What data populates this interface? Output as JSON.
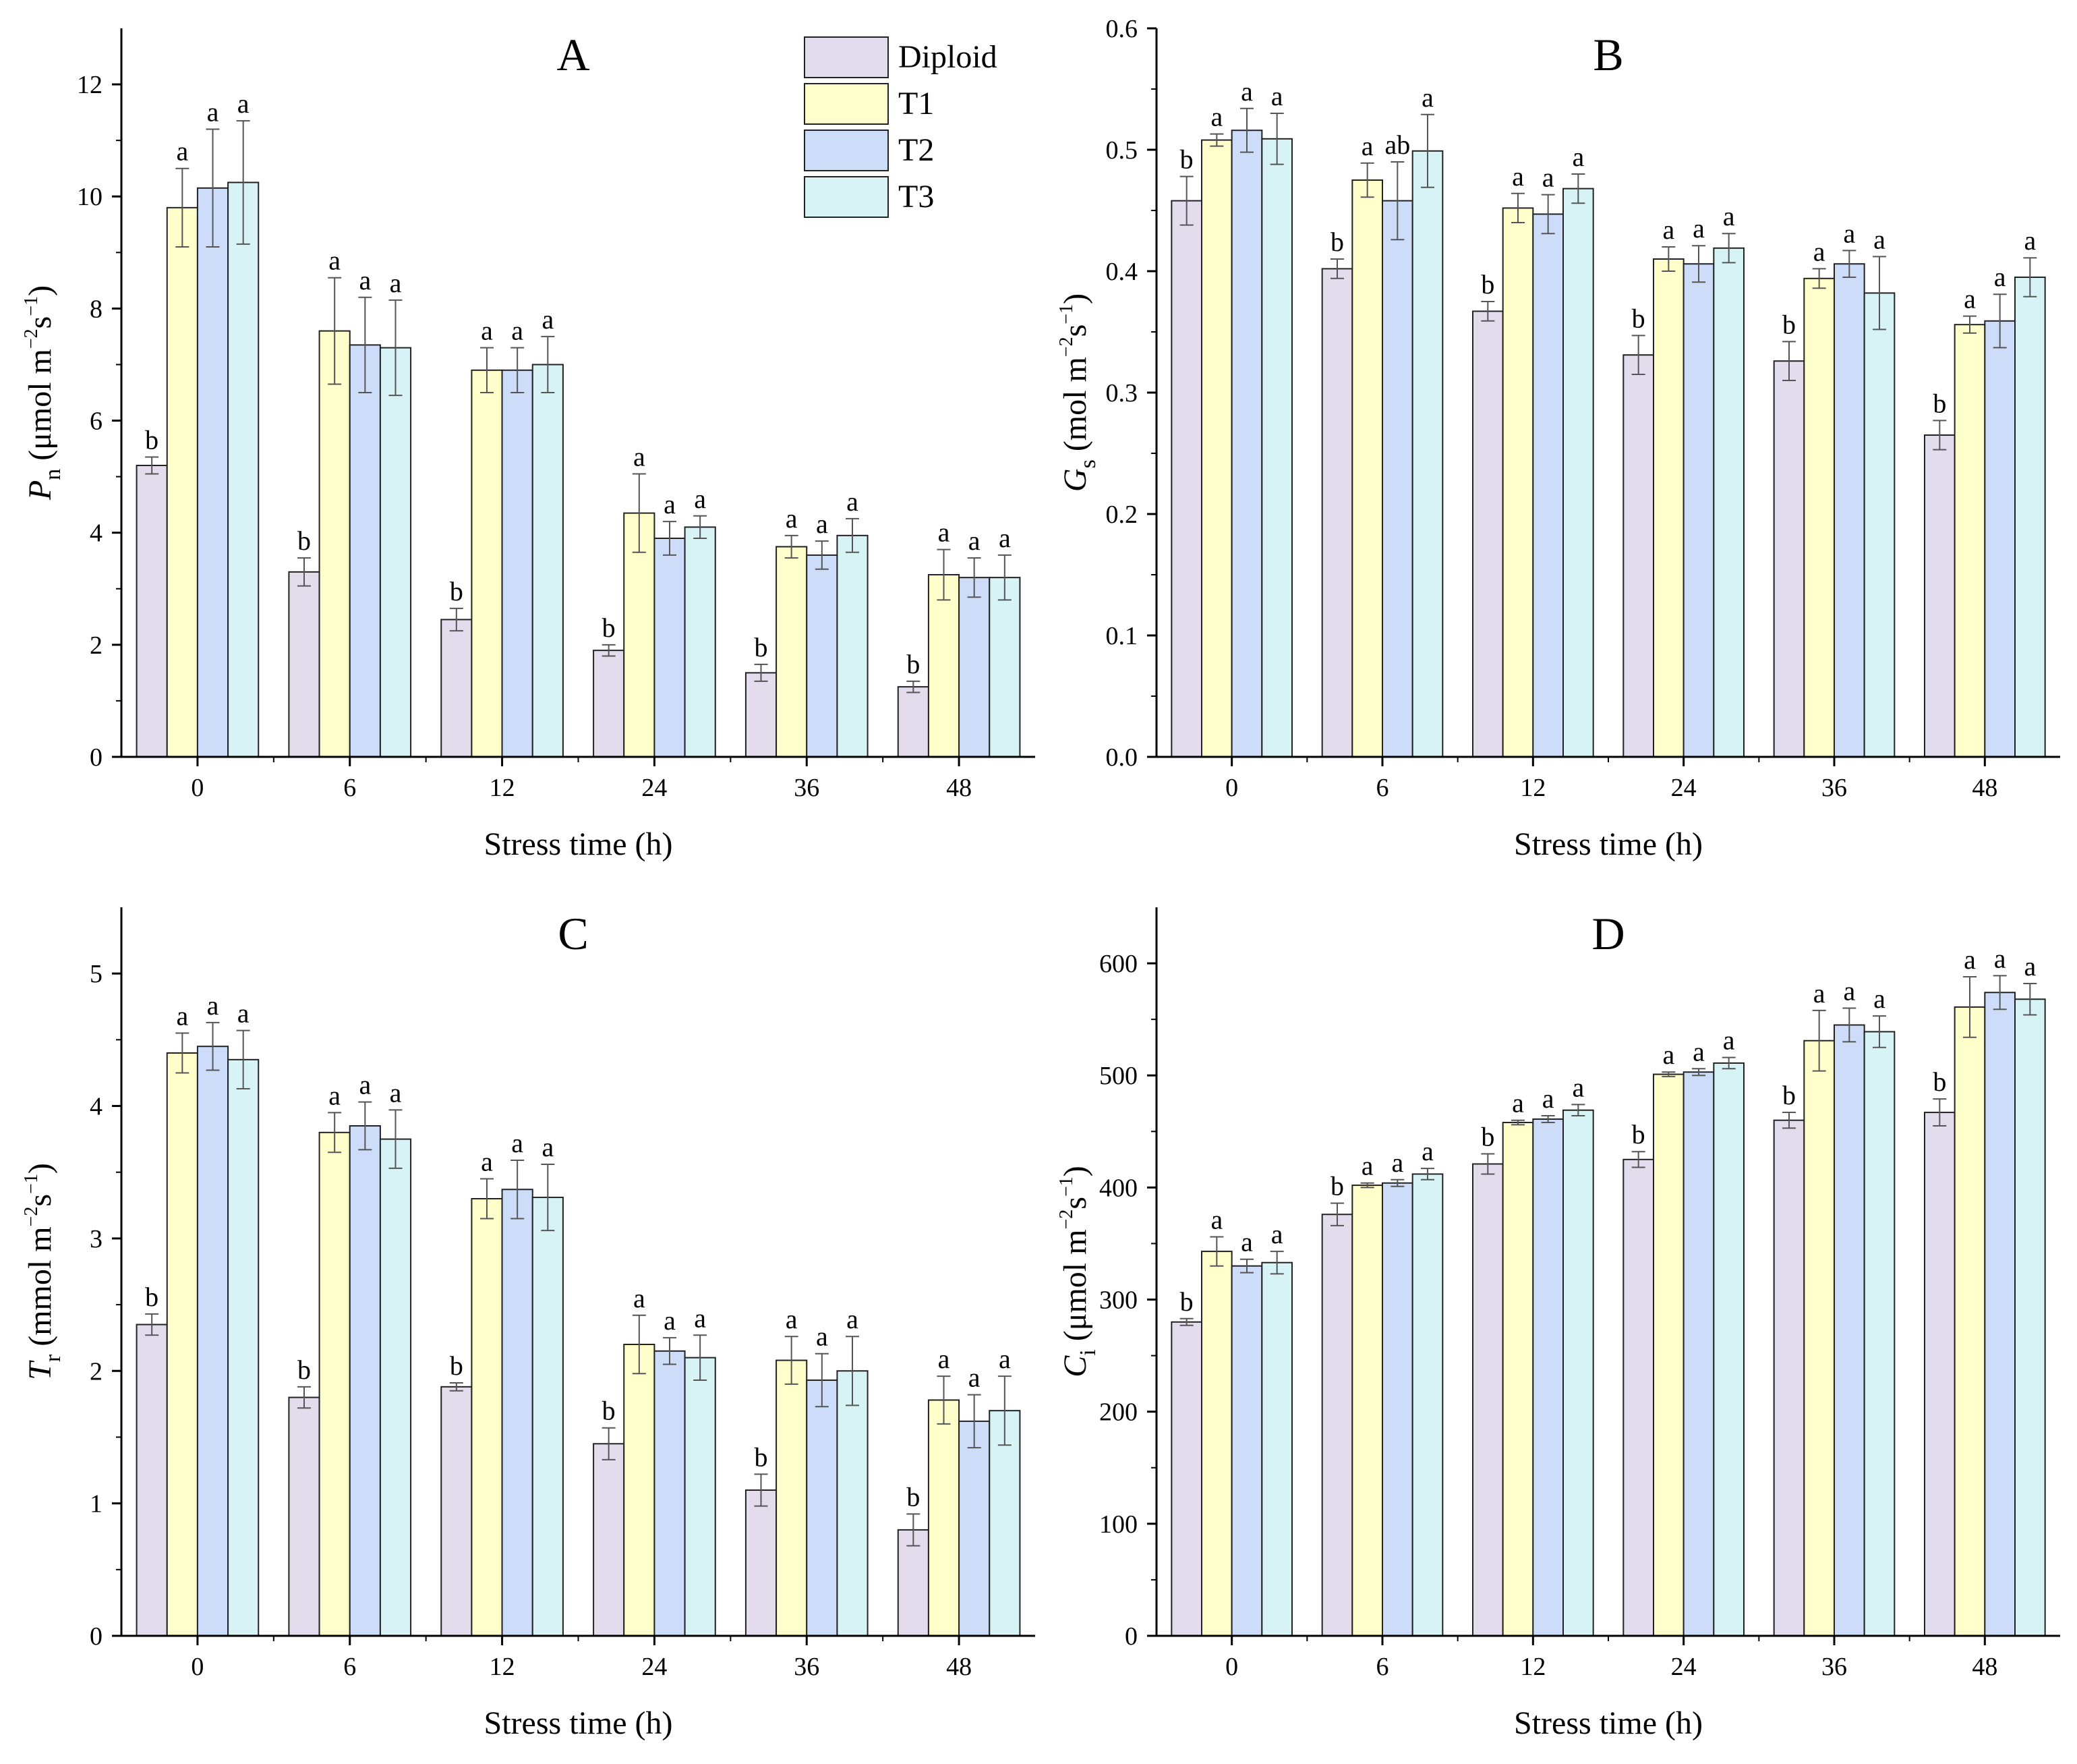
{
  "colors": {
    "Diploid": "#e3dcec",
    "T1": "#ffffcc",
    "T2": "#cddcf9",
    "T3": "#d7f3f5",
    "axis": "#000000",
    "error": "#555555"
  },
  "legend": [
    "Diploid",
    "T1",
    "T2",
    "T3"
  ],
  "chart_data": [
    {
      "panel": "A",
      "type": "bar",
      "categories": [
        "0",
        "6",
        "12",
        "24",
        "36",
        "48"
      ],
      "xlabel": "Stress time (h)",
      "ylabel": {
        "main": "P",
        "sub": "n",
        "pre": " (μmol m",
        "sup1": "−2",
        "mid": "s",
        "sup2": "−1",
        "post": ")"
      },
      "ylim": [
        0,
        13
      ],
      "yticks": [
        0,
        2,
        4,
        6,
        8,
        10,
        12
      ],
      "series": [
        {
          "name": "Diploid",
          "values": [
            5.2,
            3.3,
            2.45,
            1.9,
            1.5,
            1.25
          ],
          "errors": [
            0.15,
            0.25,
            0.2,
            0.1,
            0.15,
            0.1
          ],
          "labels": [
            "b",
            "b",
            "b",
            "b",
            "b",
            "b"
          ]
        },
        {
          "name": "T1",
          "values": [
            9.8,
            7.6,
            6.9,
            4.35,
            3.75,
            3.25
          ],
          "errors": [
            0.7,
            0.95,
            0.4,
            0.7,
            0.2,
            0.45
          ],
          "labels": [
            "a",
            "a",
            "a",
            "a",
            "a",
            "a"
          ]
        },
        {
          "name": "T2",
          "values": [
            10.15,
            7.35,
            6.9,
            3.9,
            3.6,
            3.2
          ],
          "errors": [
            1.05,
            0.85,
            0.4,
            0.3,
            0.25,
            0.35
          ],
          "labels": [
            "a",
            "a",
            "a",
            "a",
            "a",
            "a"
          ]
        },
        {
          "name": "T3",
          "values": [
            10.25,
            7.3,
            7.0,
            4.1,
            3.95,
            3.2
          ],
          "errors": [
            1.1,
            0.85,
            0.5,
            0.2,
            0.3,
            0.4
          ],
          "labels": [
            "a",
            "a",
            "a",
            "a",
            "a",
            "a"
          ]
        }
      ]
    },
    {
      "panel": "B",
      "type": "bar",
      "categories": [
        "0",
        "6",
        "12",
        "24",
        "36",
        "48"
      ],
      "xlabel": "Stress time (h)",
      "ylabel": {
        "main": "G",
        "sub": "s",
        "pre": " (mol m",
        "sup1": "−2",
        "mid": "s",
        "sup2": "−1",
        "post": ")"
      },
      "ylim": [
        0,
        0.6
      ],
      "yticks": [
        0.0,
        0.1,
        0.2,
        0.3,
        0.4,
        0.5,
        0.6
      ],
      "series": [
        {
          "name": "Diploid",
          "values": [
            0.458,
            0.402,
            0.367,
            0.331,
            0.326,
            0.265
          ],
          "errors": [
            0.02,
            0.008,
            0.008,
            0.016,
            0.016,
            0.012
          ],
          "labels": [
            "b",
            "b",
            "b",
            "b",
            "b",
            "b"
          ]
        },
        {
          "name": "T1",
          "values": [
            0.508,
            0.475,
            0.452,
            0.41,
            0.394,
            0.356
          ],
          "errors": [
            0.005,
            0.014,
            0.012,
            0.01,
            0.008,
            0.007
          ],
          "labels": [
            "a",
            "a",
            "a",
            "a",
            "a",
            "a"
          ]
        },
        {
          "name": "T2",
          "values": [
            0.516,
            0.458,
            0.447,
            0.406,
            0.406,
            0.359
          ],
          "errors": [
            0.018,
            0.032,
            0.016,
            0.015,
            0.011,
            0.022
          ],
          "labels": [
            "a",
            "ab",
            "a",
            "a",
            "a",
            "a"
          ]
        },
        {
          "name": "T3",
          "values": [
            0.509,
            0.499,
            0.468,
            0.419,
            0.382,
            0.395
          ],
          "errors": [
            0.021,
            0.03,
            0.012,
            0.012,
            0.03,
            0.016
          ],
          "labels": [
            "a",
            "a",
            "a",
            "a",
            "a",
            "a"
          ]
        }
      ]
    },
    {
      "panel": "C",
      "type": "bar",
      "categories": [
        "0",
        "6",
        "12",
        "24",
        "36",
        "48"
      ],
      "xlabel": "Stress time (h)",
      "ylabel": {
        "main": "T",
        "sub": "r",
        "pre": " (mmol m",
        "sup1": "−2",
        "mid": "s",
        "sup2": "−1",
        "post": ")"
      },
      "ylim": [
        0,
        5.5
      ],
      "yticks": [
        0,
        1,
        2,
        3,
        4,
        5
      ],
      "series": [
        {
          "name": "Diploid",
          "values": [
            2.35,
            1.8,
            1.88,
            1.45,
            1.1,
            0.8
          ],
          "errors": [
            0.08,
            0.08,
            0.03,
            0.12,
            0.12,
            0.12
          ],
          "labels": [
            "b",
            "b",
            "b",
            "b",
            "b",
            "b"
          ]
        },
        {
          "name": "T1",
          "values": [
            4.4,
            3.8,
            3.3,
            2.2,
            2.08,
            1.78
          ],
          "errors": [
            0.15,
            0.15,
            0.15,
            0.22,
            0.18,
            0.18
          ],
          "labels": [
            "a",
            "a",
            "a",
            "a",
            "a",
            "a"
          ]
        },
        {
          "name": "T2",
          "values": [
            4.45,
            3.85,
            3.37,
            2.15,
            1.93,
            1.62
          ],
          "errors": [
            0.18,
            0.18,
            0.22,
            0.1,
            0.2,
            0.2
          ],
          "labels": [
            "a",
            "a",
            "a",
            "a",
            "a",
            "a"
          ]
        },
        {
          "name": "T3",
          "values": [
            4.35,
            3.75,
            3.31,
            2.1,
            2.0,
            1.7
          ],
          "errors": [
            0.22,
            0.22,
            0.25,
            0.17,
            0.26,
            0.26
          ],
          "labels": [
            "a",
            "a",
            "a",
            "a",
            "a",
            "a"
          ]
        }
      ]
    },
    {
      "panel": "D",
      "type": "bar",
      "categories": [
        "0",
        "6",
        "12",
        "24",
        "36",
        "48"
      ],
      "xlabel": "Stress time (h)",
      "ylabel": {
        "main": "C",
        "sub": "i",
        "pre": " (μmol m",
        "sup1": "−2",
        "mid": "s",
        "sup2": "−1",
        "post": ")"
      },
      "ylim": [
        0,
        650
      ],
      "yticks": [
        0,
        100,
        200,
        300,
        400,
        500,
        600
      ],
      "series": [
        {
          "name": "Diploid",
          "values": [
            280,
            376,
            421,
            425,
            460,
            467
          ],
          "errors": [
            3,
            10,
            9,
            7,
            7,
            12
          ],
          "labels": [
            "b",
            "b",
            "b",
            "b",
            "b",
            "b"
          ]
        },
        {
          "name": "T1",
          "values": [
            343,
            402,
            458,
            501,
            531,
            561
          ],
          "errors": [
            13,
            2,
            2,
            2,
            27,
            27
          ],
          "labels": [
            "a",
            "a",
            "a",
            "a",
            "a",
            "a"
          ]
        },
        {
          "name": "T2",
          "values": [
            330,
            404,
            461,
            503,
            545,
            574
          ],
          "errors": [
            6,
            3,
            3,
            3,
            15,
            15
          ],
          "labels": [
            "a",
            "a",
            "a",
            "a",
            "a",
            "a"
          ]
        },
        {
          "name": "T3",
          "values": [
            333,
            412,
            469,
            511,
            539,
            568
          ],
          "errors": [
            10,
            5,
            5,
            5,
            14,
            14
          ],
          "labels": [
            "a",
            "a",
            "a",
            "a",
            "a",
            "a"
          ]
        }
      ]
    }
  ]
}
